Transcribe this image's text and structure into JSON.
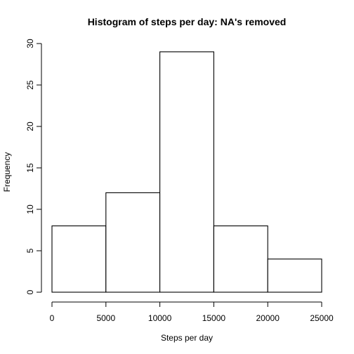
{
  "chart_data": {
    "type": "bar",
    "title": "Histogram of steps per day: NA's removed",
    "xlabel": "Steps per day",
    "ylabel": "Frequency",
    "bins": [
      {
        "start": 0,
        "end": 5000,
        "count": 8
      },
      {
        "start": 5000,
        "end": 10000,
        "count": 12
      },
      {
        "start": 10000,
        "end": 15000,
        "count": 29
      },
      {
        "start": 15000,
        "end": 20000,
        "count": 8
      },
      {
        "start": 20000,
        "end": 25000,
        "count": 4
      }
    ],
    "xlim": [
      0,
      25000
    ],
    "ylim": [
      0,
      30
    ],
    "x_ticks": [
      0,
      5000,
      10000,
      15000,
      20000,
      25000
    ],
    "y_ticks": [
      0,
      5,
      10,
      15,
      20,
      25,
      30
    ],
    "grid": false,
    "legend": "none"
  }
}
